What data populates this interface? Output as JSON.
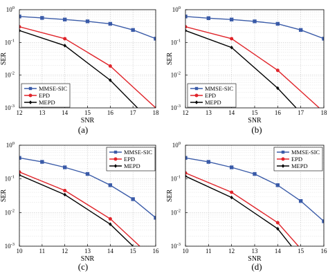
{
  "chart_data": [
    {
      "type": "line",
      "panel_label": "(a)",
      "xlabel": "SNR",
      "ylabel": "SER",
      "xlim": [
        12,
        18
      ],
      "ylim": [
        0.001,
        1
      ],
      "yscale": "log",
      "xticks": [
        12,
        13,
        14,
        15,
        16,
        17,
        18
      ],
      "yticks": [
        {
          "v": 0.001,
          "label": "10",
          "exp": "-3"
        },
        {
          "v": 0.01,
          "label": "10",
          "exp": "-2"
        },
        {
          "v": 0.1,
          "label": "10",
          "exp": "-1"
        },
        {
          "v": 1,
          "label": "10",
          "exp": "0"
        }
      ],
      "grid": true,
      "legend_position": "bottom-left",
      "series": [
        {
          "name": "MMSE-SIC",
          "color": "#3a5ba8",
          "marker": "square",
          "x": [
            12,
            13,
            14,
            15,
            16,
            17,
            18
          ],
          "y": [
            0.62,
            0.56,
            0.5,
            0.44,
            0.37,
            0.24,
            0.13
          ]
        },
        {
          "name": "EPD",
          "color": "#e0242a",
          "marker": "circle",
          "x": [
            12,
            14,
            16,
            18
          ],
          "y": [
            0.3,
            0.13,
            0.019,
            0.001
          ]
        },
        {
          "name": "MEPD",
          "color": "#000000",
          "marker": "diamond",
          "x": [
            12,
            14,
            16,
            17.2
          ],
          "y": [
            0.23,
            0.08,
            0.007,
            0.001
          ]
        }
      ]
    },
    {
      "type": "line",
      "panel_label": "(b)",
      "xlabel": "SNR",
      "ylabel": "SER",
      "xlim": [
        12,
        18
      ],
      "ylim": [
        0.001,
        1
      ],
      "yscale": "log",
      "xticks": [
        12,
        13,
        14,
        15,
        16,
        17,
        18
      ],
      "yticks": [
        {
          "v": 0.001,
          "label": "10",
          "exp": "-3"
        },
        {
          "v": 0.01,
          "label": "10",
          "exp": "-2"
        },
        {
          "v": 0.1,
          "label": "10",
          "exp": "-1"
        },
        {
          "v": 1,
          "label": "10",
          "exp": "0"
        }
      ],
      "grid": true,
      "legend_position": "bottom-left",
      "series": [
        {
          "name": "MMSE-SIC",
          "color": "#3a5ba8",
          "marker": "square",
          "x": [
            12,
            13,
            14,
            15,
            16,
            17,
            18
          ],
          "y": [
            0.62,
            0.55,
            0.5,
            0.44,
            0.37,
            0.24,
            0.13
          ]
        },
        {
          "name": "EPD",
          "color": "#e0242a",
          "marker": "circle",
          "x": [
            12,
            14,
            16,
            17.8
          ],
          "y": [
            0.3,
            0.13,
            0.014,
            0.001
          ]
        },
        {
          "name": "MEPD",
          "color": "#000000",
          "marker": "diamond",
          "x": [
            12,
            14,
            16,
            16.8
          ],
          "y": [
            0.23,
            0.07,
            0.004,
            0.001
          ]
        }
      ]
    },
    {
      "type": "line",
      "panel_label": "(c)",
      "xlabel": "SNR",
      "ylabel": "SER",
      "xlim": [
        10,
        16
      ],
      "ylim": [
        0.001,
        1
      ],
      "yscale": "log",
      "xticks": [
        10,
        11,
        12,
        13,
        14,
        15,
        16
      ],
      "yticks": [
        {
          "v": 0.001,
          "label": "10",
          "exp": "-3"
        },
        {
          "v": 0.01,
          "label": "10",
          "exp": "-2"
        },
        {
          "v": 0.1,
          "label": "10",
          "exp": "-1"
        },
        {
          "v": 1,
          "label": "10",
          "exp": "0"
        }
      ],
      "grid": true,
      "legend_position": "top-right",
      "series": [
        {
          "name": "MMSE-SIC",
          "color": "#3a5ba8",
          "marker": "square",
          "x": [
            10,
            11,
            12,
            13,
            14,
            15,
            16
          ],
          "y": [
            0.42,
            0.32,
            0.22,
            0.14,
            0.065,
            0.025,
            0.007
          ]
        },
        {
          "name": "EPD",
          "color": "#e0242a",
          "marker": "circle",
          "x": [
            10,
            12,
            14,
            15.3
          ],
          "y": [
            0.16,
            0.045,
            0.0065,
            0.001
          ]
        },
        {
          "name": "MEPD",
          "color": "#000000",
          "marker": "diamond",
          "x": [
            10,
            12,
            14,
            15
          ],
          "y": [
            0.13,
            0.034,
            0.0045,
            0.001
          ]
        }
      ]
    },
    {
      "type": "line",
      "panel_label": "(d)",
      "xlabel": "SNR",
      "ylabel": "SER",
      "xlim": [
        10,
        16
      ],
      "ylim": [
        0.001,
        1
      ],
      "yscale": "log",
      "xticks": [
        10,
        11,
        12,
        13,
        14,
        15,
        16
      ],
      "yticks": [
        {
          "v": 0.001,
          "label": "10",
          "exp": "-3"
        },
        {
          "v": 0.01,
          "label": "10",
          "exp": "-2"
        },
        {
          "v": 0.1,
          "label": "10",
          "exp": "-1"
        },
        {
          "v": 1,
          "label": "10",
          "exp": "0"
        }
      ],
      "grid": true,
      "legend_position": "top-right",
      "series": [
        {
          "name": "MMSE-SIC",
          "color": "#3a5ba8",
          "marker": "square",
          "x": [
            10,
            11,
            12,
            13,
            14,
            15,
            16
          ],
          "y": [
            0.42,
            0.32,
            0.22,
            0.14,
            0.065,
            0.022,
            0.0055
          ]
        },
        {
          "name": "EPD",
          "color": "#e0242a",
          "marker": "circle",
          "x": [
            10,
            12,
            14,
            14.9
          ],
          "y": [
            0.15,
            0.04,
            0.005,
            0.001
          ]
        },
        {
          "name": "MEPD",
          "color": "#000000",
          "marker": "diamond",
          "x": [
            10,
            12,
            14,
            14.6
          ],
          "y": [
            0.12,
            0.028,
            0.0033,
            0.001
          ]
        }
      ]
    }
  ]
}
